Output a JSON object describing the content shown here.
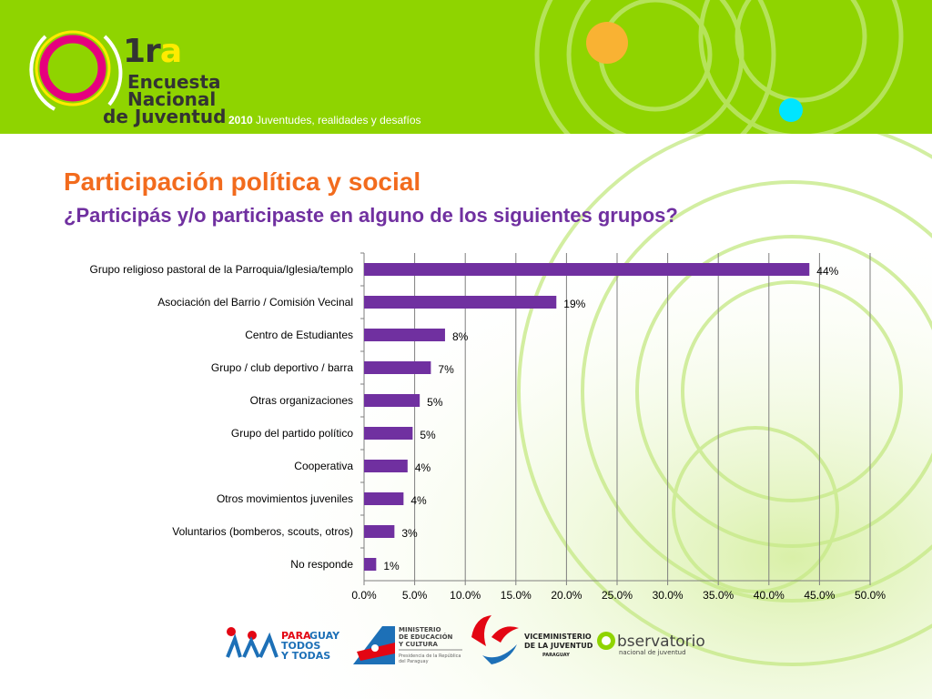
{
  "header": {
    "logo_1": "1r",
    "logo_a": "a",
    "logo_line1": "Encuesta",
    "logo_line2": "Nacional",
    "logo_line3": "de Juventud",
    "year": "2010",
    "tagline": "Juventudes, realidades y desafíos",
    "colors": {
      "band": "#8fd400",
      "ring_magenta": "#e6007e",
      "ring_yellow": "#ffeb00",
      "dot_orange": "#f9b233",
      "dot_cyan": "#00e5ff"
    }
  },
  "title": "Participación política y social",
  "subtitle": "¿Participás y/o participaste en alguno de los siguientes grupos?",
  "chart_data": {
    "type": "bar",
    "orientation": "horizontal",
    "categories": [
      "Grupo religioso pastoral de la Parroquia/Iglesia/templo",
      "Asociación del Barrio / Comisión Vecinal",
      "Centro de Estudiantes",
      "Grupo / club deportivo / barra",
      "Otras organizaciones",
      "Grupo del partido político",
      "Cooperativa",
      "Otros movimientos juveniles",
      "Voluntarios (bomberos, scouts, otros)",
      "No responde"
    ],
    "values": [
      44,
      19,
      8,
      7,
      5,
      5,
      4,
      4,
      3,
      1
    ],
    "plotted_values": [
      44,
      19,
      8,
      6.6,
      5.5,
      4.8,
      4.3,
      3.9,
      3.0,
      1.2
    ],
    "data_labels": [
      "44%",
      "19%",
      "8%",
      "7%",
      "5%",
      "5%",
      "4%",
      "4%",
      "3%",
      "1%"
    ],
    "xlim": [
      0,
      50
    ],
    "x_ticks": [
      "0.0%",
      "5.0%",
      "10.0%",
      "15.0%",
      "20.0%",
      "25.0%",
      "30.0%",
      "35.0%",
      "40.0%",
      "45.0%",
      "50.0%"
    ],
    "grid": true,
    "legend": "none",
    "bar_color": "#7030a0"
  },
  "footer": {
    "logo1_line1": "PARA",
    "logo1_line1b": "GUAY",
    "logo1_line2": "TODOS",
    "logo1_line3": "Y TODAS",
    "logo2_line1": "MINISTERIO",
    "logo2_line2": "DE EDUCACIÓN",
    "logo2_line3": "Y CULTURA",
    "logo2_line4": "Presidencia de la República",
    "logo2_line5": "del Paraguay",
    "logo3_line1": "VICEMINISTERIO",
    "logo3_line2": "DE LA JUVENTUD",
    "logo3_line3": "PARAGUAY",
    "logo4_line1": "bservatorio",
    "logo4_line2": "nacional de juventud"
  }
}
